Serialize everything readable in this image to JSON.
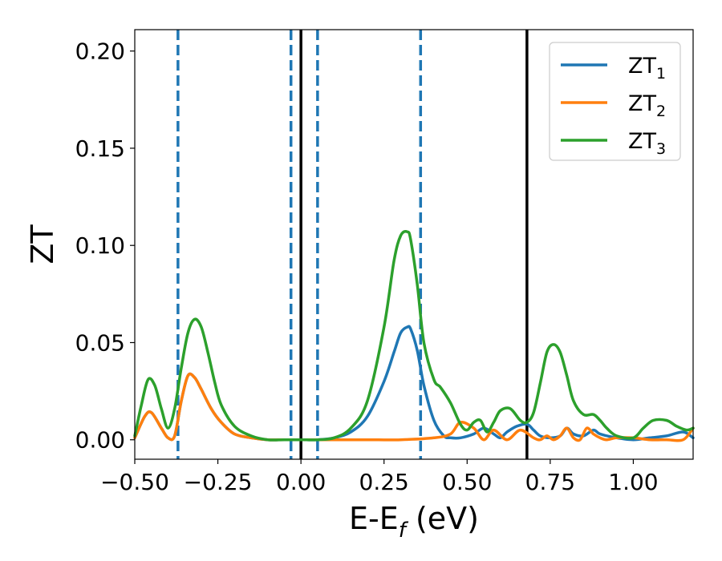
{
  "chart_data": {
    "type": "line",
    "title": "",
    "xlabel": {
      "main": "E-E",
      "sub": "f",
      "suffix": " (eV)"
    },
    "ylabel": "ZT",
    "xlim": [
      -0.5,
      1.18
    ],
    "ylim": [
      -0.01,
      0.211
    ],
    "xticks": [
      -0.5,
      -0.25,
      0.0,
      0.25,
      0.5,
      0.75,
      1.0
    ],
    "xtick_labels": [
      "−0.50",
      "−0.25",
      "0.00",
      "0.25",
      "0.50",
      "0.75",
      "1.00"
    ],
    "yticks": [
      0.0,
      0.05,
      0.1,
      0.15,
      0.2
    ],
    "ytick_labels": [
      "0.00",
      "0.05",
      "0.10",
      "0.15",
      "0.20"
    ],
    "grid": false,
    "legend_position": "top-right",
    "vlines_solid": {
      "x": [
        0.0,
        0.68
      ],
      "color": "#000000"
    },
    "vlines_dashed": {
      "x": [
        -0.37,
        -0.03,
        0.05,
        0.36
      ],
      "color": "#1f77b4"
    },
    "series": [
      {
        "name": "ZT",
        "name_sub": "1",
        "color": "#1f77b4",
        "x": [
          -0.5,
          -0.47,
          -0.45,
          -0.42,
          -0.4,
          -0.38,
          -0.36,
          -0.34,
          -0.32,
          -0.3,
          -0.27,
          -0.24,
          -0.2,
          -0.15,
          -0.1,
          -0.05,
          0.0,
          0.05,
          0.1,
          0.15,
          0.2,
          0.25,
          0.28,
          0.3,
          0.32,
          0.33,
          0.35,
          0.37,
          0.4,
          0.43,
          0.45,
          0.48,
          0.52,
          0.55,
          0.58,
          0.6,
          0.62,
          0.65,
          0.68,
          0.7,
          0.72,
          0.75,
          0.78,
          0.8,
          0.82,
          0.85,
          0.88,
          0.9,
          0.95,
          1.0,
          1.05,
          1.1,
          1.15,
          1.18
        ],
        "y": [
          0.001,
          0.012,
          0.014,
          0.006,
          0.001,
          0.002,
          0.02,
          0.033,
          0.032,
          0.026,
          0.016,
          0.009,
          0.003,
          0.001,
          0.0,
          0.0,
          0.0,
          0.0,
          0.001,
          0.004,
          0.012,
          0.03,
          0.045,
          0.055,
          0.058,
          0.057,
          0.046,
          0.028,
          0.01,
          0.002,
          0.001,
          0.001,
          0.003,
          0.006,
          0.003,
          0.001,
          0.004,
          0.007,
          0.008,
          0.005,
          0.002,
          0.001,
          0.002,
          0.006,
          0.003,
          0.002,
          0.005,
          0.003,
          0.001,
          0.0,
          0.001,
          0.002,
          0.004,
          0.001
        ]
      },
      {
        "name": "ZT",
        "name_sub": "2",
        "color": "#ff7f0e",
        "x": [
          -0.5,
          -0.47,
          -0.45,
          -0.42,
          -0.4,
          -0.38,
          -0.36,
          -0.34,
          -0.32,
          -0.3,
          -0.27,
          -0.24,
          -0.2,
          -0.15,
          -0.1,
          -0.05,
          0.0,
          0.1,
          0.2,
          0.3,
          0.4,
          0.45,
          0.48,
          0.52,
          0.55,
          0.58,
          0.62,
          0.66,
          0.7,
          0.72,
          0.74,
          0.76,
          0.78,
          0.8,
          0.82,
          0.84,
          0.86,
          0.88,
          0.9,
          0.92,
          0.95,
          1.0,
          1.05,
          1.1,
          1.15,
          1.18
        ],
        "y": [
          0.001,
          0.012,
          0.014,
          0.006,
          0.001,
          0.002,
          0.02,
          0.033,
          0.032,
          0.026,
          0.016,
          0.009,
          0.003,
          0.001,
          0.0,
          0.0,
          0.0,
          0.0,
          0.0,
          0.0,
          0.001,
          0.003,
          0.009,
          0.006,
          0.0,
          0.005,
          0.0,
          0.005,
          0.001,
          0.0,
          0.002,
          0.0,
          0.002,
          0.006,
          0.001,
          0.0,
          0.006,
          0.003,
          0.001,
          0.0,
          0.001,
          0.001,
          0.0,
          0.0,
          0.0,
          0.006
        ]
      },
      {
        "name": "ZT",
        "name_sub": "3",
        "color": "#2ca02c",
        "x": [
          -0.5,
          -0.48,
          -0.46,
          -0.44,
          -0.42,
          -0.4,
          -0.38,
          -0.36,
          -0.34,
          -0.32,
          -0.3,
          -0.28,
          -0.26,
          -0.24,
          -0.2,
          -0.15,
          -0.1,
          -0.05,
          0.0,
          0.05,
          0.1,
          0.15,
          0.2,
          0.25,
          0.28,
          0.3,
          0.32,
          0.33,
          0.35,
          0.37,
          0.4,
          0.42,
          0.45,
          0.48,
          0.5,
          0.52,
          0.54,
          0.56,
          0.58,
          0.6,
          0.63,
          0.66,
          0.68,
          0.7,
          0.72,
          0.74,
          0.76,
          0.78,
          0.8,
          0.82,
          0.85,
          0.88,
          0.9,
          0.92,
          0.95,
          1.0,
          1.03,
          1.06,
          1.1,
          1.13,
          1.16,
          1.18
        ],
        "y": [
          0.002,
          0.018,
          0.031,
          0.028,
          0.016,
          0.006,
          0.016,
          0.037,
          0.055,
          0.062,
          0.058,
          0.045,
          0.03,
          0.018,
          0.007,
          0.002,
          0.0,
          0.0,
          0.0,
          0.0,
          0.001,
          0.006,
          0.02,
          0.058,
          0.092,
          0.105,
          0.107,
          0.103,
          0.08,
          0.05,
          0.031,
          0.027,
          0.019,
          0.008,
          0.005,
          0.009,
          0.01,
          0.004,
          0.009,
          0.015,
          0.016,
          0.01,
          0.009,
          0.014,
          0.029,
          0.045,
          0.049,
          0.045,
          0.033,
          0.02,
          0.013,
          0.013,
          0.01,
          0.006,
          0.002,
          0.001,
          0.006,
          0.01,
          0.01,
          0.007,
          0.005,
          0.006
        ]
      }
    ]
  }
}
